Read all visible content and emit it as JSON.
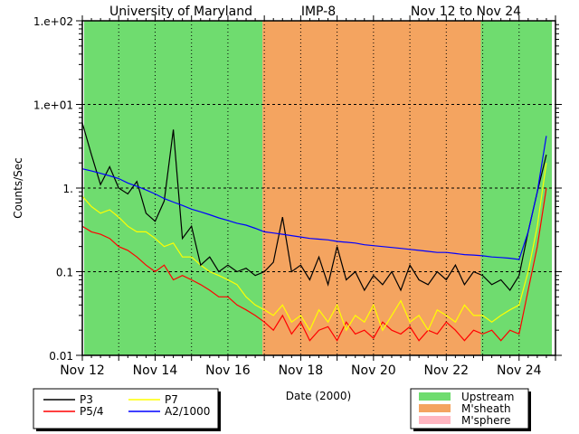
{
  "chart_data": {
    "type": "line",
    "title": {
      "left": "University of Maryland",
      "mid": "IMP-8",
      "right": "Nov 12 to Nov 24"
    },
    "xlabel": "Date (2000)",
    "ylabel": "Counts/Sec",
    "x_units": "days since Nov 12 00:00",
    "xlim": [
      0,
      13
    ],
    "ylim": [
      0.01,
      100
    ],
    "yscale": "log",
    "x_step": 0.25,
    "xtick_labels": [
      {
        "day": 0,
        "label": "Nov 12"
      },
      {
        "day": 2,
        "label": "Nov 14"
      },
      {
        "day": 4,
        "label": "Nov 16"
      },
      {
        "day": 6,
        "label": "Nov 18"
      },
      {
        "day": 8,
        "label": "Nov 20"
      },
      {
        "day": 10,
        "label": "Nov 22"
      },
      {
        "day": 12,
        "label": "Nov 24"
      }
    ],
    "ytick_labels": [
      {
        "value": 100,
        "label": "1.e+02"
      },
      {
        "value": 10,
        "label": "1.e+01"
      },
      {
        "value": 1,
        "label": "1."
      },
      {
        "value": 0.1,
        "label": "0.1"
      },
      {
        "value": 0.01,
        "label": "0.01"
      }
    ],
    "regions": [
      {
        "name": "Upstream",
        "start": 0.05,
        "end": 4.95
      },
      {
        "name": "M'sheath",
        "start": 4.95,
        "end": 10.95
      },
      {
        "name": "Upstream",
        "start": 10.95,
        "end": 12.9
      }
    ],
    "region_legend": [
      {
        "name": "Upstream",
        "color": "#6fdc6f"
      },
      {
        "name": "M'sheath",
        "color": "#f4a460"
      },
      {
        "name": "M'sphere",
        "color": "#ffb6c1"
      }
    ],
    "series": [
      {
        "name": "P3",
        "color": "#000000",
        "values": [
          6,
          2.5,
          1.1,
          1.8,
          1.0,
          0.85,
          1.2,
          0.5,
          0.4,
          0.7,
          5.0,
          0.25,
          0.35,
          0.12,
          0.15,
          0.1,
          0.12,
          0.1,
          0.11,
          0.09,
          0.1,
          0.13,
          0.45,
          0.1,
          0.12,
          0.08,
          0.15,
          0.07,
          0.2,
          0.08,
          0.1,
          0.06,
          0.09,
          0.07,
          0.1,
          0.06,
          0.12,
          0.08,
          0.07,
          0.1,
          0.08,
          0.12,
          0.07,
          0.1,
          0.09,
          0.07,
          0.08,
          0.06,
          0.09,
          0.3,
          0.9,
          2.5
        ]
      },
      {
        "name": "P5/4",
        "color": "#ff0000",
        "values": [
          0.35,
          0.3,
          0.28,
          0.25,
          0.2,
          0.18,
          0.15,
          0.12,
          0.1,
          0.12,
          0.08,
          0.09,
          0.08,
          0.07,
          0.06,
          0.05,
          0.05,
          0.04,
          0.035,
          0.03,
          0.025,
          0.02,
          0.03,
          0.018,
          0.025,
          0.015,
          0.02,
          0.022,
          0.015,
          0.025,
          0.018,
          0.02,
          0.016,
          0.025,
          0.02,
          0.018,
          0.022,
          0.015,
          0.02,
          0.018,
          0.025,
          0.02,
          0.015,
          0.02,
          0.018,
          0.02,
          0.015,
          0.02,
          0.018,
          0.06,
          0.2,
          1.0
        ]
      },
      {
        "name": "P7",
        "color": "#ffff00",
        "values": [
          0.8,
          0.6,
          0.5,
          0.55,
          0.45,
          0.35,
          0.3,
          0.3,
          0.25,
          0.2,
          0.22,
          0.15,
          0.15,
          0.12,
          0.1,
          0.09,
          0.08,
          0.07,
          0.05,
          0.04,
          0.035,
          0.03,
          0.04,
          0.025,
          0.03,
          0.02,
          0.035,
          0.025,
          0.04,
          0.02,
          0.03,
          0.025,
          0.04,
          0.02,
          0.03,
          0.045,
          0.025,
          0.03,
          0.02,
          0.035,
          0.03,
          0.025,
          0.04,
          0.03,
          0.03,
          0.025,
          0.03,
          0.035,
          0.04,
          0.1,
          0.35,
          2.0
        ]
      },
      {
        "name": "A2/1000",
        "color": "#0000ff",
        "values": [
          1.7,
          1.6,
          1.5,
          1.4,
          1.3,
          1.15,
          1.05,
          0.95,
          0.85,
          0.75,
          0.68,
          0.62,
          0.56,
          0.52,
          0.48,
          0.44,
          0.41,
          0.38,
          0.36,
          0.33,
          0.3,
          0.29,
          0.28,
          0.27,
          0.26,
          0.25,
          0.245,
          0.24,
          0.23,
          0.225,
          0.22,
          0.21,
          0.205,
          0.2,
          0.195,
          0.19,
          0.185,
          0.18,
          0.175,
          0.17,
          0.17,
          0.165,
          0.16,
          0.158,
          0.155,
          0.15,
          0.148,
          0.145,
          0.14,
          0.3,
          0.9,
          4.2
        ]
      }
    ],
    "grid": true
  }
}
